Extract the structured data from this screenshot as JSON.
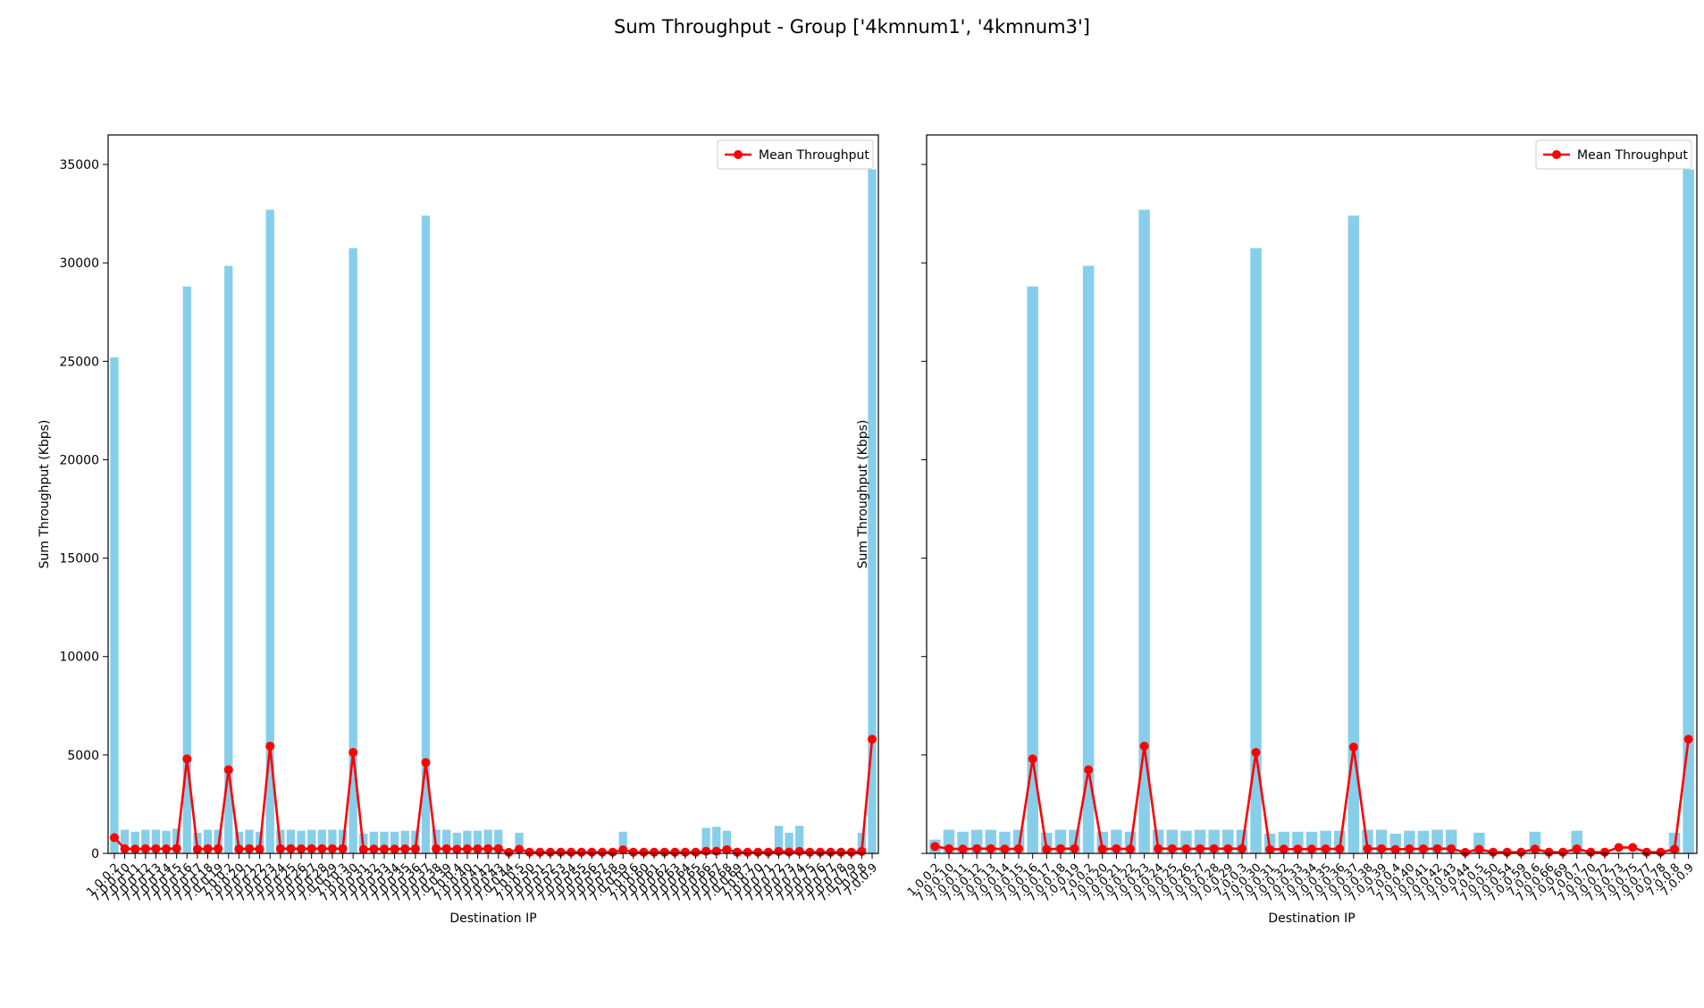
{
  "figure": {
    "suptitle": "Sum Throughput - Group ['4kmnum1', '4kmnum3']",
    "bar_color": "#87CEEB",
    "line_color": "#FF0000"
  },
  "chart_data": [
    {
      "type": "bar",
      "title": "",
      "xlabel": "Destination IP",
      "ylabel": "Sum Throughput (Kbps)",
      "ylim": [
        0,
        36500
      ],
      "yticks": [
        0,
        5000,
        10000,
        15000,
        20000,
        25000,
        30000,
        35000
      ],
      "grid": false,
      "legend": {
        "position": "top-right",
        "entries": [
          "Mean Throughput"
        ]
      },
      "categories": [
        "1.0.0.2",
        "7.0.0.10",
        "7.0.0.11",
        "7.0.0.12",
        "7.0.0.13",
        "7.0.0.14",
        "7.0.0.15",
        "7.0.0.16",
        "7.0.0.17",
        "7.0.0.18",
        "7.0.0.19",
        "7.0.0.2",
        "7.0.0.20",
        "7.0.0.21",
        "7.0.0.22",
        "7.0.0.23",
        "7.0.0.24",
        "7.0.0.25",
        "7.0.0.26",
        "7.0.0.27",
        "7.0.0.28",
        "7.0.0.29",
        "7.0.0.3",
        "7.0.0.30",
        "7.0.0.31",
        "7.0.0.32",
        "7.0.0.33",
        "7.0.0.34",
        "7.0.0.35",
        "7.0.0.36",
        "7.0.0.37",
        "7.0.0.38",
        "7.0.0.39",
        "7.0.0.4",
        "7.0.0.40",
        "7.0.0.41",
        "7.0.0.42",
        "7.0.0.43",
        "7.0.0.44",
        "7.0.0.5",
        "7.0.0.50",
        "7.0.0.51",
        "7.0.0.52",
        "7.0.0.53",
        "7.0.0.54",
        "7.0.0.55",
        "7.0.0.56",
        "7.0.0.57",
        "7.0.0.58",
        "7.0.0.59",
        "7.0.0.6",
        "7.0.0.60",
        "7.0.0.61",
        "7.0.0.62",
        "7.0.0.63",
        "7.0.0.64",
        "7.0.0.65",
        "7.0.0.66",
        "7.0.0.67",
        "7.0.0.68",
        "7.0.0.69",
        "7.0.0.7",
        "7.0.0.70",
        "7.0.0.71",
        "7.0.0.72",
        "7.0.0.73",
        "7.0.0.74",
        "7.0.0.75",
        "7.0.0.76",
        "7.0.0.77",
        "7.0.0.78",
        "7.0.0.79",
        "7.0.0.8",
        "7.0.0.9"
      ],
      "series": [
        {
          "name": "",
          "type": "bar",
          "values": [
            25200,
            1200,
            1100,
            1200,
            1200,
            1150,
            1250,
            28800,
            1050,
            1200,
            1200,
            29850,
            1100,
            1200,
            1100,
            32700,
            1200,
            1200,
            1150,
            1200,
            1200,
            1200,
            1200,
            30750,
            1000,
            1100,
            1100,
            1100,
            1150,
            1150,
            32400,
            1200,
            1200,
            1050,
            1150,
            1150,
            1200,
            1200,
            50,
            1050,
            50,
            50,
            50,
            50,
            50,
            50,
            50,
            50,
            50,
            1100,
            50,
            50,
            50,
            50,
            50,
            50,
            50,
            1300,
            1350,
            1150,
            50,
            50,
            50,
            50,
            1400,
            1050,
            1400,
            50,
            50,
            50,
            50,
            50,
            1050,
            34750
          ]
        },
        {
          "name": "Mean Throughput",
          "type": "line",
          "values": [
            800,
            240,
            220,
            240,
            240,
            230,
            250,
            4800,
            210,
            240,
            240,
            4250,
            220,
            240,
            220,
            5450,
            240,
            240,
            230,
            240,
            240,
            240,
            240,
            5130,
            200,
            220,
            220,
            220,
            230,
            230,
            4620,
            240,
            240,
            210,
            230,
            230,
            240,
            240,
            50,
            210,
            60,
            60,
            60,
            60,
            60,
            60,
            60,
            60,
            60,
            180,
            60,
            60,
            60,
            60,
            60,
            60,
            60,
            110,
            110,
            190,
            60,
            60,
            60,
            60,
            100,
            70,
            100,
            60,
            60,
            60,
            60,
            60,
            100,
            5800
          ]
        }
      ]
    },
    {
      "type": "bar",
      "title": "",
      "xlabel": "Destination IP",
      "ylabel": "Sum Throughput (Kbps)",
      "ylim": [
        0,
        36500
      ],
      "yticks": [
        0,
        5000,
        10000,
        15000,
        20000,
        25000,
        30000,
        35000
      ],
      "grid": false,
      "legend": {
        "position": "top-right",
        "entries": [
          "Mean Throughput"
        ]
      },
      "categories": [
        "1.0.0.2",
        "7.0.0.10",
        "7.0.0.11",
        "7.0.0.12",
        "7.0.0.13",
        "7.0.0.14",
        "7.0.0.15",
        "7.0.0.16",
        "7.0.0.17",
        "7.0.0.18",
        "7.0.0.19",
        "7.0.0.2",
        "7.0.0.20",
        "7.0.0.21",
        "7.0.0.22",
        "7.0.0.23",
        "7.0.0.24",
        "7.0.0.25",
        "7.0.0.26",
        "7.0.0.27",
        "7.0.0.28",
        "7.0.0.29",
        "7.0.0.3",
        "7.0.0.30",
        "7.0.0.31",
        "7.0.0.32",
        "7.0.0.33",
        "7.0.0.34",
        "7.0.0.35",
        "7.0.0.36",
        "7.0.0.37",
        "7.0.0.38",
        "7.0.0.39",
        "7.0.0.4",
        "7.0.0.40",
        "7.0.0.41",
        "7.0.0.42",
        "7.0.0.43",
        "7.0.0.44",
        "7.0.0.5",
        "7.0.0.50",
        "7.0.0.54",
        "7.0.0.59",
        "7.0.0.6",
        "7.0.0.66",
        "7.0.0.69",
        "7.0.0.7",
        "7.0.0.70",
        "7.0.0.72",
        "7.0.0.73",
        "7.0.0.75",
        "7.0.0.77",
        "7.0.0.78",
        "7.0.0.8",
        "7.0.0.9"
      ],
      "series": [
        {
          "name": "",
          "type": "bar",
          "values": [
            700,
            1200,
            1100,
            1200,
            1200,
            1100,
            1200,
            28800,
            1050,
            1200,
            1200,
            29850,
            1100,
            1200,
            1100,
            32700,
            1200,
            1200,
            1150,
            1200,
            1200,
            1200,
            1200,
            30750,
            1000,
            1100,
            1100,
            1100,
            1150,
            1150,
            32400,
            1200,
            1200,
            1000,
            1150,
            1150,
            1200,
            1200,
            50,
            1050,
            50,
            50,
            50,
            1100,
            50,
            50,
            1150,
            50,
            50,
            50,
            50,
            50,
            50,
            1050,
            34750
          ]
        },
        {
          "name": "Mean Throughput",
          "type": "line",
          "values": [
            350,
            240,
            220,
            240,
            240,
            220,
            240,
            4800,
            210,
            240,
            240,
            4250,
            220,
            240,
            220,
            5450,
            240,
            240,
            230,
            240,
            240,
            240,
            240,
            5130,
            200,
            220,
            220,
            220,
            230,
            230,
            5400,
            240,
            240,
            200,
            230,
            230,
            240,
            240,
            50,
            210,
            60,
            60,
            60,
            220,
            60,
            60,
            230,
            60,
            60,
            300,
            300,
            60,
            60,
            210,
            5800
          ]
        }
      ]
    }
  ]
}
